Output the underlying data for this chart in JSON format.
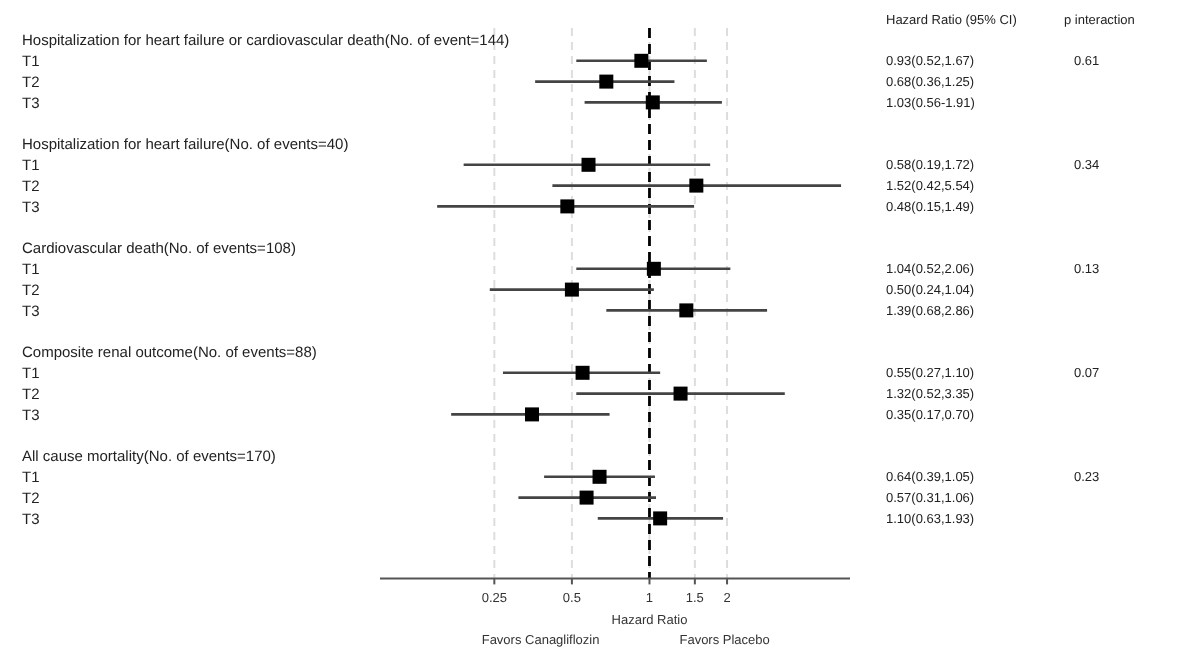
{
  "chart_data": {
    "type": "scatter",
    "orientation": "horizontal",
    "xlabel": "Hazard Ratio",
    "log": "x",
    "xlim": [
      0.09,
      6
    ],
    "xticks": [
      0.25,
      0.5,
      1,
      1.5,
      2
    ],
    "grid": "x",
    "marker": "square",
    "color": "#000000",
    "categories": [
      "Hospitalization for heart failure or cardiovascular death(No. of event=144)",
      "T1",
      "T2",
      "T3",
      null,
      "Hospitalization for heart failure(No. of events=40)",
      "T1",
      "T2",
      "T3",
      null,
      "Cardiovascular death(No. of events=108)",
      "T1",
      "T2",
      "T3",
      null,
      "Composite renal outcome(No. of events=88)",
      "T1",
      "T2",
      "T3",
      null,
      "All cause mortality(No. of events=170)",
      "T1",
      "T2",
      "T3"
    ],
    "values": [
      null,
      0.93,
      0.68,
      1.03,
      null,
      null,
      0.58,
      1.52,
      0.48,
      null,
      null,
      1.04,
      0.5,
      1.39,
      null,
      null,
      0.55,
      1.32,
      0.35,
      null,
      null,
      0.64,
      0.57,
      1.1
    ],
    "errors": [
      null,
      [
        0.52,
        1.67
      ],
      [
        0.36,
        1.25
      ],
      [
        0.56,
        1.91
      ],
      null,
      null,
      [
        0.19,
        1.72
      ],
      [
        0.42,
        5.54
      ],
      [
        0.15,
        1.49
      ],
      null,
      null,
      [
        0.52,
        2.06
      ],
      [
        0.24,
        1.04
      ],
      [
        0.68,
        2.86
      ],
      null,
      null,
      [
        0.27,
        1.1
      ],
      [
        0.52,
        3.35
      ],
      [
        0.17,
        0.7
      ],
      null,
      null,
      [
        0.39,
        1.05
      ],
      [
        0.31,
        1.06
      ],
      [
        0.63,
        1.93
      ]
    ],
    "value_labels": [
      null,
      "0.93(0.52,1.67)",
      "0.68(0.36,1.25)",
      "1.03(0.56-1.91)",
      null,
      null,
      "0.58(0.19,1.72)",
      "1.52(0.42,5.54)",
      "0.48(0.15,1.49)",
      null,
      null,
      "1.04(0.52,2.06)",
      "0.50(0.24,1.04)",
      "1.39(0.68,2.86)",
      null,
      null,
      "0.55(0.27,1.10)",
      "1.32(0.52,3.35)",
      "0.35(0.17,0.70)",
      null,
      null,
      "0.64(0.39,1.05)",
      "0.57(0.31,1.06)",
      "1.10(0.63,1.93)"
    ],
    "ref_lines": [
      {
        "axis": "x",
        "value": 1,
        "color": "#000000",
        "line_style": "dashed"
      }
    ],
    "annotations": [
      "Hazard Ratio (95% CI)",
      "p interaction",
      "0.61",
      "0.34",
      "0.13",
      "0.07",
      "0.23",
      "Favors Canagliflozin",
      "Favors Placebo"
    ]
  }
}
